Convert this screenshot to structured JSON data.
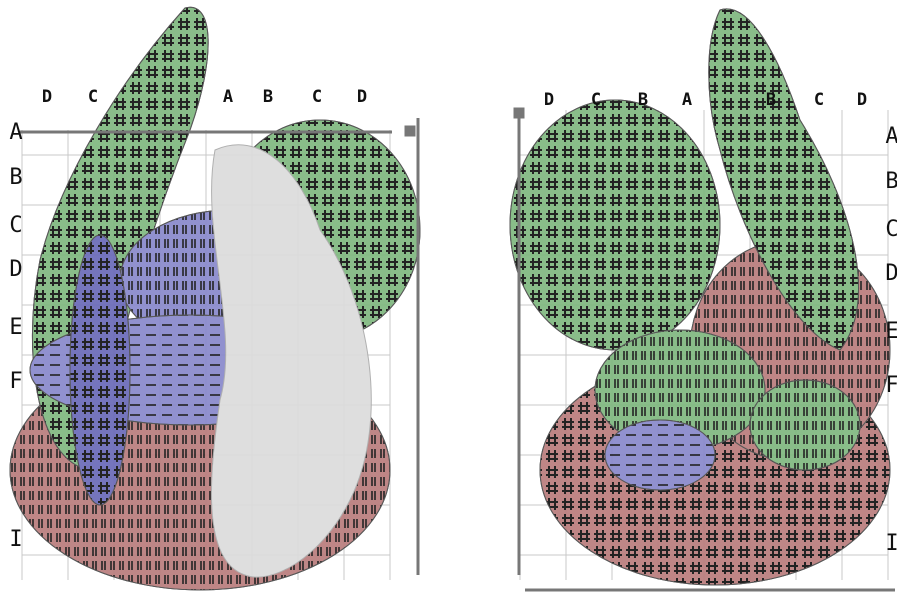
{
  "left_view": {
    "column_labels": [
      "D",
      "C",
      "A",
      "B",
      "C",
      "D"
    ],
    "row_labels": [
      "A",
      "B",
      "C",
      "D",
      "E",
      "F",
      "I"
    ]
  },
  "right_view": {
    "column_labels": [
      "D",
      "C",
      "B",
      "A",
      "B",
      "C",
      "D"
    ],
    "row_labels": [
      "A",
      "B",
      "C",
      "D",
      "E",
      "F",
      "I"
    ]
  }
}
